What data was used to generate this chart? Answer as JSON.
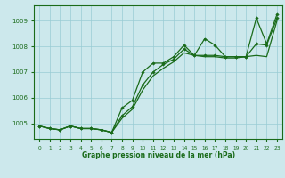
{
  "title": "Graphe pression niveau de la mer (hPa)",
  "bg_color": "#cce8ec",
  "grid_color": "#99ccd4",
  "line_color": "#1a6b1a",
  "xlim": [
    -0.5,
    23.5
  ],
  "ylim": [
    1004.4,
    1009.6
  ],
  "yticks": [
    1005,
    1006,
    1007,
    1008,
    1009
  ],
  "xticks": [
    0,
    1,
    2,
    3,
    4,
    5,
    6,
    7,
    8,
    9,
    10,
    11,
    12,
    13,
    14,
    15,
    16,
    17,
    18,
    19,
    20,
    21,
    22,
    23
  ],
  "series1": [
    1004.9,
    1004.8,
    1004.75,
    1004.9,
    1004.8,
    1004.8,
    1004.75,
    1004.65,
    1005.6,
    1005.9,
    1007.0,
    1007.35,
    1007.35,
    1007.6,
    1008.05,
    1007.65,
    1008.3,
    1008.05,
    1007.6,
    1007.6,
    1007.6,
    1009.1,
    1008.1,
    1009.25
  ],
  "series2": [
    1004.9,
    1004.8,
    1004.75,
    1004.9,
    1004.8,
    1004.8,
    1004.75,
    1004.65,
    1005.3,
    1005.65,
    1006.5,
    1007.0,
    1007.3,
    1007.5,
    1007.9,
    1007.65,
    1007.65,
    1007.65,
    1007.6,
    1007.6,
    1007.6,
    1008.1,
    1008.05,
    1009.1
  ],
  "series3": [
    1004.9,
    1004.8,
    1004.75,
    1004.9,
    1004.8,
    1004.8,
    1004.75,
    1004.65,
    1005.2,
    1005.55,
    1006.3,
    1006.85,
    1007.15,
    1007.4,
    1007.75,
    1007.65,
    1007.6,
    1007.6,
    1007.55,
    1007.55,
    1007.6,
    1007.65,
    1007.6,
    1009.0
  ],
  "figsize": [
    3.2,
    2.0
  ],
  "dpi": 100
}
